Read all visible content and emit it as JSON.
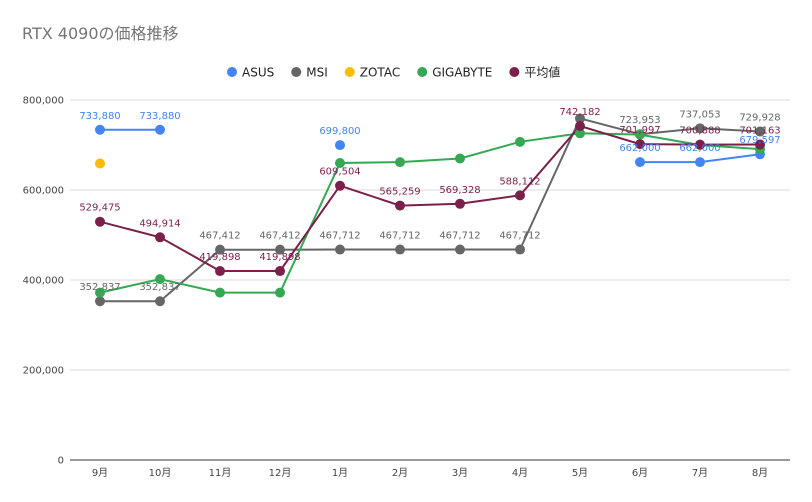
{
  "chart_data": {
    "type": "line",
    "title": "RTX 4090の価格推移",
    "xlabel": "",
    "ylabel": "",
    "categories": [
      "9月",
      "10月",
      "11月",
      "12月",
      "1月",
      "2月",
      "3月",
      "4月",
      "5月",
      "6月",
      "7月",
      "8月"
    ],
    "ylim": [
      0,
      800000
    ],
    "yticks": [
      0,
      200000,
      400000,
      600000,
      800000
    ],
    "ytick_labels": [
      "0",
      "200,000",
      "400,000",
      "600,000",
      "800,000"
    ],
    "grid": true,
    "legend_position": "top",
    "series": [
      {
        "name": "ASUS",
        "color": "#4285F4",
        "values": [
          733880,
          733880,
          null,
          null,
          699800,
          null,
          null,
          null,
          null,
          662000,
          662000,
          679597
        ],
        "labels": [
          "733,880",
          "733,880",
          "",
          "",
          "699,800",
          "",
          "",
          "",
          "",
          "662,000",
          "662,000",
          "679,597"
        ]
      },
      {
        "name": "MSI",
        "color": "#666666",
        "values": [
          352837,
          352837,
          467412,
          467412,
          467712,
          467712,
          467712,
          467712,
          759000,
          723953,
          737053,
          729928
        ],
        "labels": [
          "352,837",
          "352,837",
          "467,412",
          "467,412",
          "467,712",
          "467,712",
          "467,712",
          "467,712",
          "",
          "723,953",
          "737,053",
          "729,928"
        ]
      },
      {
        "name": "ZOTAC",
        "color": "#FBBC04",
        "values": [
          659000,
          null,
          null,
          null,
          null,
          null,
          null,
          null,
          null,
          null,
          null,
          null
        ],
        "labels": [
          "",
          "",
          "",
          "",
          "",
          "",
          "",
          "",
          "",
          "",
          "",
          ""
        ]
      },
      {
        "name": "GIGABYTE",
        "color": "#34A853",
        "values": [
          372000,
          402000,
          372000,
          372000,
          660000,
          662000,
          670000,
          707000,
          726000,
          723000,
          700000,
          691000
        ],
        "labels": [
          "",
          "",
          "",
          "",
          "",
          "",
          "",
          "",
          "",
          "",
          "",
          ""
        ]
      },
      {
        "name": "平均値",
        "color": "#7B1F4B",
        "values": [
          529475,
          494914,
          419898,
          419898,
          609504,
          565259,
          569328,
          588112,
          742182,
          701997,
          700888,
          701163
        ],
        "labels": [
          "529,475",
          "494,914",
          "419,898",
          "419,898",
          "609,504",
          "565,259",
          "569,328",
          "588,112",
          "742,182",
          "701,997",
          "700,888",
          "701,163"
        ]
      }
    ]
  }
}
